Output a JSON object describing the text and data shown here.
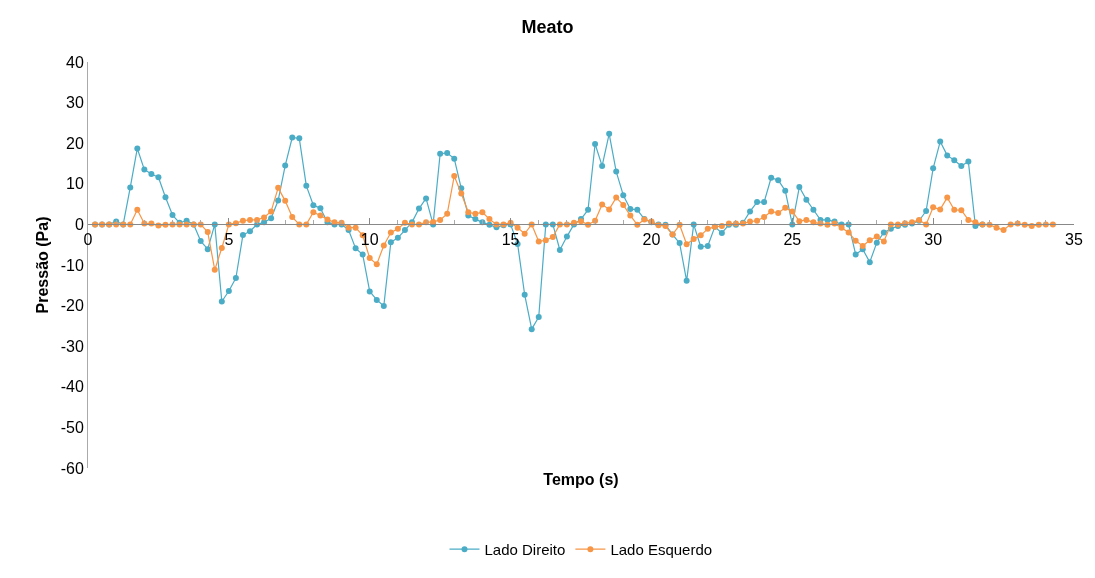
{
  "chart_data": {
    "type": "line",
    "title": "Meato",
    "xlabel": "Tempo (s)",
    "ylabel": "Pressão (Pa)",
    "xlim": [
      0,
      35
    ],
    "xticks": [
      0,
      5,
      10,
      15,
      20,
      25,
      30,
      35
    ],
    "ylim": [
      -60,
      40
    ],
    "yticks": [
      -60,
      -50,
      -40,
      -30,
      -20,
      -10,
      0,
      10,
      20,
      30,
      40
    ],
    "legend": "bottom",
    "marker": "circle",
    "line_style": "solid",
    "series": [
      {
        "name": "Lado Direito",
        "color": "#4bacc6",
        "x": [
          0.25,
          0.5,
          0.75,
          1.0,
          1.25,
          1.5,
          1.75,
          2.0,
          2.25,
          2.5,
          2.75,
          3.0,
          3.25,
          3.5,
          3.75,
          4.0,
          4.25,
          4.5,
          4.75,
          5.0,
          5.25,
          5.5,
          5.75,
          6.0,
          6.25,
          6.5,
          6.75,
          7.0,
          7.25,
          7.5,
          7.75,
          8.0,
          8.25,
          8.5,
          8.75,
          9.0,
          9.25,
          9.5,
          9.75,
          10.0,
          10.25,
          10.5,
          10.75,
          11.0,
          11.25,
          11.5,
          11.75,
          12.0,
          12.25,
          12.5,
          12.75,
          13.0,
          13.25,
          13.5,
          13.75,
          14.0,
          14.25,
          14.5,
          14.75,
          15.0,
          15.25,
          15.5,
          15.75,
          16.0,
          16.25,
          16.5,
          16.75,
          17.0,
          17.25,
          17.5,
          17.75,
          18.0,
          18.25,
          18.5,
          18.75,
          19.0,
          19.25,
          19.5,
          19.75,
          20.0,
          20.25,
          20.5,
          20.75,
          21.0,
          21.25,
          21.5,
          21.75,
          22.0,
          22.25,
          22.5,
          22.75,
          23.0,
          23.25,
          23.5,
          23.75,
          24.0,
          24.25,
          24.5,
          24.75,
          25.0,
          25.25,
          25.5,
          25.75,
          26.0,
          26.25,
          26.5,
          26.75,
          27.0,
          27.25,
          27.5,
          27.75,
          28.0,
          28.25,
          28.5,
          28.75,
          29.0,
          29.25,
          29.5,
          29.75,
          30.0,
          30.25,
          30.5,
          30.75,
          31.0,
          31.25,
          31.5,
          31.75
        ],
        "values": [
          0,
          0,
          0,
          0.7,
          0,
          9.1,
          18.7,
          13.5,
          12.4,
          11.6,
          6.7,
          2.3,
          0.4,
          0.9,
          0,
          -4.1,
          -6.1,
          0,
          -19,
          -16.4,
          -13.2,
          -2.6,
          -1.7,
          0,
          0.5,
          1.5,
          5.9,
          14.5,
          21.4,
          21.2,
          9.5,
          4.7,
          4.0,
          0.5,
          0,
          0,
          -1.4,
          -5.9,
          -7.4,
          -16.5,
          -18.6,
          -20.1,
          -4.4,
          -3.3,
          -1.4,
          0.5,
          3.9,
          6.4,
          0,
          17.4,
          17.6,
          16.2,
          8.9,
          2.2,
          1.3,
          0.5,
          -0.1,
          -0.7,
          -0.2,
          0,
          -4.8,
          -17.3,
          -25.8,
          -22.8,
          0,
          0,
          -6.3,
          -3.0,
          0,
          1.3,
          3.6,
          19.8,
          14.4,
          22.3,
          13.0,
          7.2,
          3.8,
          3.6,
          1.3,
          0.5,
          0,
          -0.1,
          -2.5,
          -4.6,
          -13.9,
          0,
          -5.5,
          -5.3,
          -0.6,
          -2.1,
          -0.1,
          -0.1,
          0.4,
          3.2,
          5.5,
          5.5,
          11.5,
          10.9,
          8.3,
          0,
          9.2,
          6.1,
          3.6,
          1.1,
          1.1,
          0.7,
          0,
          0,
          -7.4,
          -6.1,
          -9.3,
          -4.5,
          -2.0,
          -1.1,
          -0.4,
          -0.1,
          0.2,
          0.9,
          3.3,
          13.8,
          20.4,
          17.0,
          15.8,
          14.4,
          15.5,
          -0.4,
          0
        ]
      },
      {
        "name": "Lado Esquerdo",
        "color": "#f79646",
        "x": [
          0.25,
          0.5,
          0.75,
          1.0,
          1.25,
          1.5,
          1.75,
          2.0,
          2.25,
          2.5,
          2.75,
          3.0,
          3.25,
          3.5,
          3.75,
          4.0,
          4.25,
          4.5,
          4.75,
          5.0,
          5.25,
          5.5,
          5.75,
          6.0,
          6.25,
          6.5,
          6.75,
          7.0,
          7.25,
          7.5,
          7.75,
          8.0,
          8.25,
          8.5,
          8.75,
          9.0,
          9.25,
          9.5,
          9.75,
          10.0,
          10.25,
          10.5,
          10.75,
          11.0,
          11.25,
          11.5,
          11.75,
          12.0,
          12.25,
          12.5,
          12.75,
          13.0,
          13.25,
          13.5,
          13.75,
          14.0,
          14.25,
          14.5,
          14.75,
          15.0,
          15.25,
          15.5,
          15.75,
          16.0,
          16.25,
          16.5,
          16.75,
          17.0,
          17.25,
          17.5,
          17.75,
          18.0,
          18.25,
          18.5,
          18.75,
          19.0,
          19.25,
          19.5,
          19.75,
          20.0,
          20.25,
          20.5,
          20.75,
          21.0,
          21.25,
          21.5,
          21.75,
          22.0,
          22.25,
          22.5,
          22.75,
          23.0,
          23.25,
          23.5,
          23.75,
          24.0,
          24.25,
          24.5,
          24.75,
          25.0,
          25.25,
          25.5,
          25.75,
          26.0,
          26.25,
          26.5,
          26.75,
          27.0,
          27.25,
          27.5,
          27.75,
          28.0,
          28.25,
          28.5,
          28.75,
          29.0,
          29.25,
          29.5,
          29.75,
          30.0,
          30.25,
          30.5,
          30.75,
          31.0,
          31.25,
          31.5,
          31.75,
          32.0,
          32.25,
          32.5,
          32.75,
          33.0,
          33.25,
          33.5,
          33.75,
          34.0,
          34.25
        ],
        "values": [
          0,
          0,
          0,
          0,
          0,
          0,
          3.6,
          0.2,
          0.2,
          -0.3,
          -0.1,
          0,
          0,
          0,
          0,
          0,
          -1.9,
          -11.2,
          -5.8,
          0,
          0.3,
          0.9,
          1.1,
          1.1,
          1.7,
          3.2,
          9.0,
          5.8,
          1.8,
          0,
          0,
          3.0,
          2.2,
          1.2,
          0.5,
          0.4,
          -0.8,
          -0.8,
          -2.7,
          -8.3,
          -9.8,
          -5.2,
          -2.0,
          -1.1,
          0.4,
          0,
          0,
          0.5,
          0.6,
          1.1,
          2.6,
          11.9,
          7.6,
          3.0,
          2.6,
          3.0,
          1.3,
          0,
          0,
          0.4,
          -0.8,
          -2.3,
          0,
          -4.2,
          -3.9,
          -3.1,
          0,
          0,
          0.4,
          0.8,
          -0.1,
          0.9,
          4.9,
          3.7,
          6.6,
          4.8,
          2.2,
          -0.1,
          1.2,
          0.7,
          -0.2,
          -0.4,
          -2.5,
          -0.1,
          -4.9,
          -3.6,
          -2.7,
          -1.1,
          -0.6,
          -0.4,
          0.2,
          0.2,
          0.2,
          0.7,
          0.9,
          1.8,
          3.2,
          2.8,
          4.1,
          3.2,
          0.8,
          1.1,
          0.5,
          0.2,
          -0.1,
          0.2,
          -0.8,
          -2.0,
          -4.0,
          -5.3,
          -3.9,
          -3.0,
          -4.2,
          0,
          0,
          0.3,
          0.5,
          1.1,
          0,
          4.2,
          3.7,
          6.6,
          3.6,
          3.5,
          1.1,
          0.5,
          0,
          -0.1,
          -0.8,
          -1.4,
          0,
          0.2,
          -0.1,
          -0.4,
          -0.1,
          0,
          0
        ]
      }
    ]
  }
}
